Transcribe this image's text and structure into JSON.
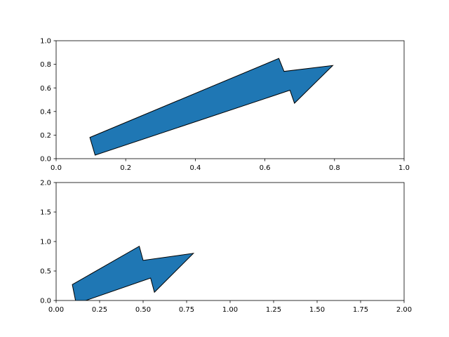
{
  "chart_data": [
    {
      "type": "arrow",
      "title": "",
      "xlabel": "",
      "ylabel": "",
      "xlim": [
        0,
        1
      ],
      "ylim": [
        0,
        1
      ],
      "xticks": [
        "0.0",
        "0.2",
        "0.4",
        "0.6",
        "0.8",
        "1.0"
      ],
      "yticks": [
        "0.0",
        "0.2",
        "0.4",
        "0.6",
        "0.8",
        "1.0"
      ],
      "grid": false,
      "arrow": {
        "color": "#1f77b4",
        "edgecolor": "#000000",
        "outline": [
          [
            0.097,
            0.18
          ],
          [
            0.64,
            0.85
          ],
          [
            0.655,
            0.74
          ],
          [
            0.795,
            0.79
          ],
          [
            0.685,
            0.47
          ],
          [
            0.672,
            0.58
          ],
          [
            0.112,
            0.03
          ]
        ]
      }
    },
    {
      "type": "arrow",
      "title": "",
      "xlabel": "",
      "ylabel": "",
      "xlim": [
        0,
        2
      ],
      "ylim": [
        0,
        2
      ],
      "xticks": [
        "0.00",
        "0.25",
        "0.50",
        "0.75",
        "1.00",
        "1.25",
        "1.50",
        "1.75",
        "2.00"
      ],
      "yticks": [
        "0.0",
        "0.5",
        "1.0",
        "1.5",
        "2.0"
      ],
      "grid": false,
      "arrow": {
        "color": "#1f77b4",
        "edgecolor": "#000000",
        "outline": [
          [
            0.093,
            0.27
          ],
          [
            0.478,
            0.92
          ],
          [
            0.5,
            0.68
          ],
          [
            0.789,
            0.8
          ],
          [
            0.565,
            0.14
          ],
          [
            0.543,
            0.38
          ],
          [
            0.161,
            -0.01
          ],
          [
            0.112,
            -0.01
          ]
        ]
      }
    }
  ]
}
